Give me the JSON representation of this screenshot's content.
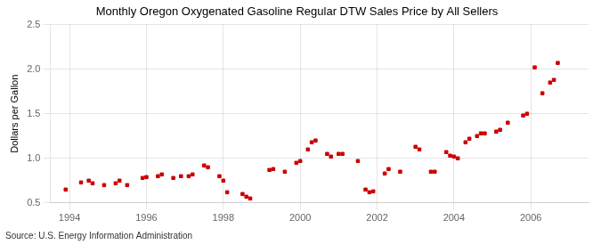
{
  "chart_data": {
    "type": "scatter",
    "title": "Monthly Oregon Oxygenated Gasoline Regular DTW Sales Price by All Sellers",
    "ylabel": "Dollars per Gallon",
    "source": "Source: U.S. Energy Information Administration",
    "color": "#cc0000",
    "marker": "square",
    "grid": true,
    "xlim": [
      1993.5,
      2007.5
    ],
    "ylim": [
      0.5,
      2.5
    ],
    "xticks": [
      1994,
      1996,
      1998,
      2000,
      2002,
      2004,
      2006
    ],
    "yticks": [
      0.5,
      {
        "value": 1.0,
        "label": "1.0"
      },
      1.5,
      {
        "value": 2.0,
        "label": "2.0"
      },
      2.5
    ],
    "x": [
      1993.9,
      1994.3,
      1994.5,
      1994.6,
      1994.9,
      1995.2,
      1995.3,
      1995.5,
      1995.9,
      1996.0,
      1996.3,
      1996.4,
      1996.7,
      1996.9,
      1997.1,
      1997.2,
      1997.5,
      1997.6,
      1997.9,
      1998.0,
      1998.1,
      1998.5,
      1998.6,
      1998.7,
      1999.2,
      1999.3,
      1999.6,
      1999.9,
      2000.0,
      2000.2,
      2000.3,
      2000.4,
      2000.7,
      2000.8,
      2001.0,
      2001.1,
      2001.5,
      2001.7,
      2001.8,
      2001.9,
      2002.2,
      2002.3,
      2002.6,
      2003.0,
      2003.1,
      2003.4,
      2003.5,
      2003.8,
      2003.9,
      2004.0,
      2004.1,
      2004.3,
      2004.4,
      2004.6,
      2004.7,
      2004.8,
      2005.1,
      2005.2,
      2005.4,
      2005.8,
      2005.9,
      2006.1,
      2006.3,
      2006.5,
      2006.6,
      2006.7
    ],
    "values": [
      0.65,
      0.73,
      0.75,
      0.72,
      0.7,
      0.72,
      0.75,
      0.7,
      0.78,
      0.79,
      0.8,
      0.82,
      0.78,
      0.8,
      0.8,
      0.82,
      0.92,
      0.9,
      0.8,
      0.75,
      0.62,
      0.6,
      0.57,
      0.55,
      0.87,
      0.88,
      0.85,
      0.95,
      0.97,
      1.1,
      1.18,
      1.2,
      1.05,
      1.02,
      1.05,
      1.05,
      0.97,
      0.65,
      0.62,
      0.63,
      0.83,
      0.88,
      0.85,
      1.13,
      1.1,
      0.85,
      0.85,
      1.07,
      1.03,
      1.02,
      1.0,
      1.18,
      1.22,
      1.25,
      1.28,
      1.28,
      1.3,
      1.32,
      1.4,
      1.48,
      1.5,
      2.02,
      1.73,
      1.85,
      1.88,
      2.07
    ]
  }
}
